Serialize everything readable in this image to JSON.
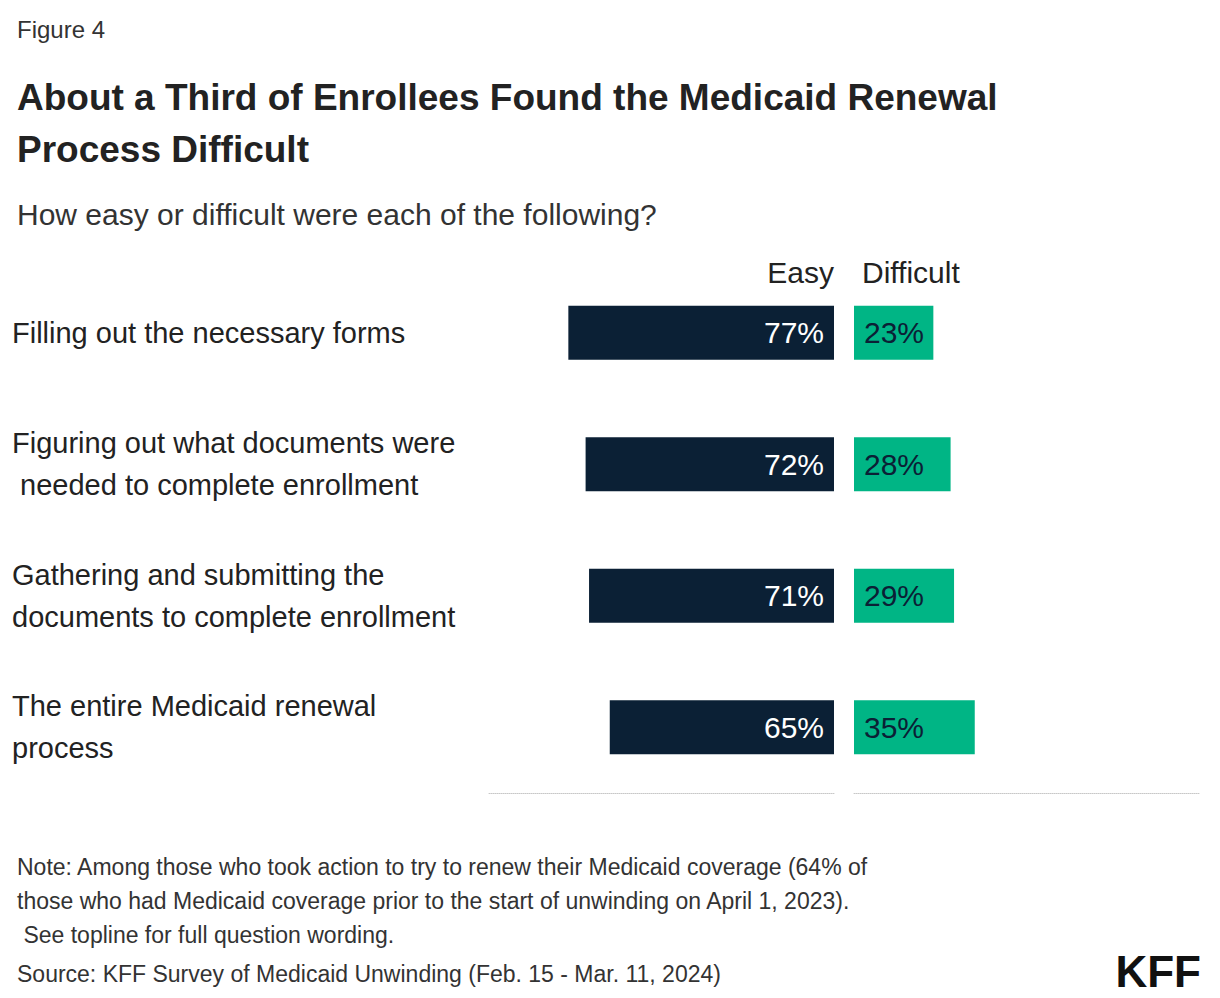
{
  "chart_data": {
    "type": "bar",
    "orientation": "horizontal",
    "figure_label": "Figure 4",
    "title": "About a Third of Enrollees Found the Medicaid Renewal Process Difficult",
    "subtitle": "How easy or difficult were each of the following?",
    "categories": [
      "Filling out the necessary forms",
      "Figuring out what documents were needed to complete enrollment",
      "Gathering and submitting the documents to complete enrollment",
      "The entire Medicaid renewal process"
    ],
    "series": [
      {
        "name": "Easy",
        "color": "#0b2035",
        "values": [
          77,
          72,
          71,
          65
        ],
        "value_labels": [
          "77%",
          "72%",
          "71%",
          "65%"
        ]
      },
      {
        "name": "Difficult",
        "color": "#00b585",
        "values": [
          23,
          28,
          29,
          35
        ],
        "value_labels": [
          "23%",
          "28%",
          "29%",
          "35%"
        ]
      }
    ],
    "xlim": [
      0,
      100
    ],
    "data_labels": true,
    "tick_labels": false,
    "note": "Note: Among those who took action to try to renew their Medicaid coverage (64% of those who had Medicaid coverage prior to the start of unwinding on April 1, 2023). See topline for full question wording.",
    "source": "Source: KFF Survey of Medicaid Unwinding (Feb. 15 - Mar. 11, 2024)",
    "logo": "KFF"
  }
}
